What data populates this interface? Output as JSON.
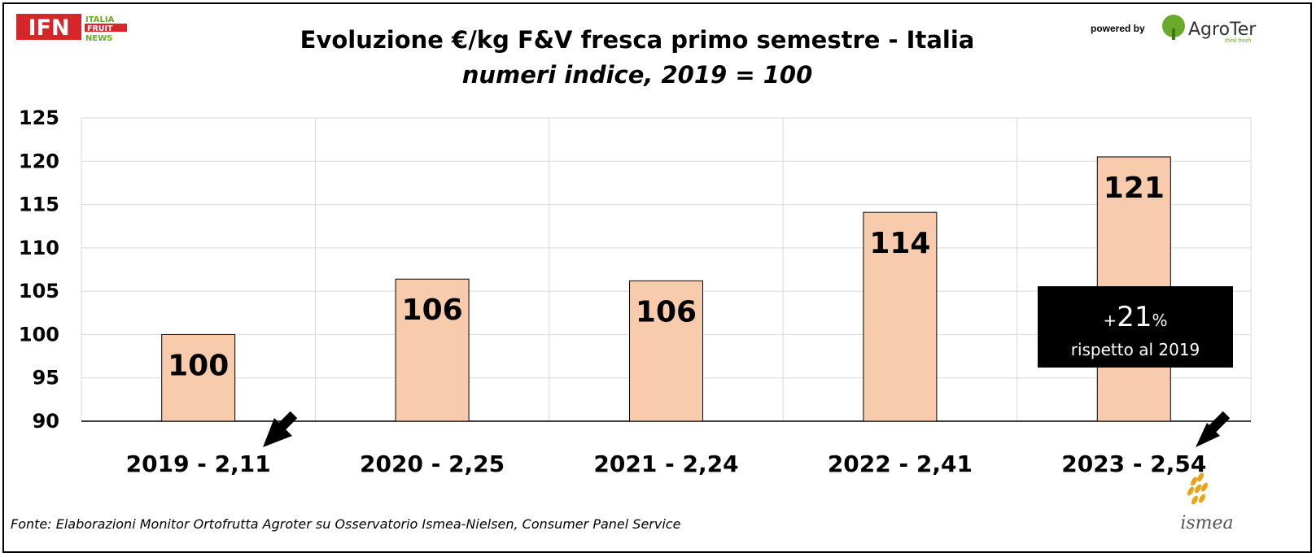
{
  "header": {
    "logo_left": {
      "main": "IFN",
      "lines": [
        "ITALIA",
        "FRUIT",
        "NEWS"
      ]
    },
    "powered_by": "powered by",
    "logo_right": {
      "main": "AgroTer",
      "tagline": "think fresh"
    }
  },
  "chart_data": {
    "type": "bar",
    "title": "Evoluzione €/kg F&V fresca primo semestre - Italia",
    "subtitle": "numeri indice, 2019 = 100",
    "categories": [
      "2019 - 2,11",
      "2020 - 2,25",
      "2021 - 2,24",
      "2022 - 2,41",
      "2023 - 2,54"
    ],
    "values": [
      100,
      106.4,
      106.2,
      114.1,
      120.5
    ],
    "data_labels": [
      "100",
      "106",
      "106",
      "114",
      "121"
    ],
    "ylim": [
      90,
      125
    ],
    "yticks": [
      90,
      95,
      100,
      105,
      110,
      115,
      120,
      125
    ],
    "grid": true,
    "bar_color": "#f8cbad",
    "annotation": {
      "prefix": "+",
      "value": "21",
      "suffix": "%",
      "text": "rispetto al 2019"
    }
  },
  "footer": {
    "source": "Fonte: Elaborazioni Monitor Ortofrutta Agroter su Osservatorio Ismea-Nielsen, Consumer Panel Service",
    "logo_bottom": "ismea"
  },
  "colors": {
    "logo_red": "#d7262b",
    "logo_green": "#6aaa2a",
    "ismea_gold": "#e8a317",
    "callout_bg": "#000000"
  }
}
